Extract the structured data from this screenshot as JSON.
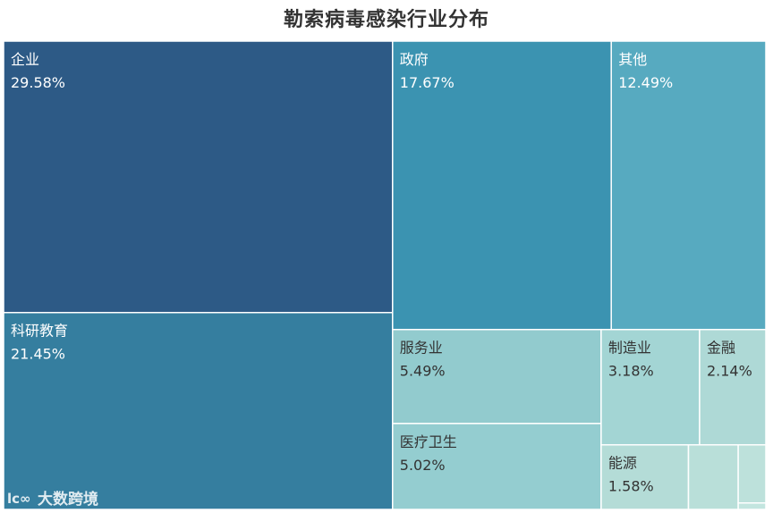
{
  "chart_data": {
    "type": "treemap",
    "title": "勒索病毒感染行业分布",
    "items": [
      {
        "name": "企业",
        "value": 29.58,
        "label": "29.58%",
        "color": "#2d5a86"
      },
      {
        "name": "科研教育",
        "value": 21.45,
        "label": "21.45%",
        "color": "#357e9f"
      },
      {
        "name": "政府",
        "value": 17.67,
        "label": "17.67%",
        "color": "#3b93b1"
      },
      {
        "name": "其他",
        "value": 12.49,
        "label": "12.49%",
        "color": "#57aac0"
      },
      {
        "name": "服务业",
        "value": 5.49,
        "label": "5.49%",
        "color": "#92cbce"
      },
      {
        "name": "医疗卫生",
        "value": 5.02,
        "label": "5.02%",
        "color": "#94cdd0"
      },
      {
        "name": "制造业",
        "value": 3.18,
        "label": "3.18%",
        "color": "#a3d5d4"
      },
      {
        "name": "金融",
        "value": 2.14,
        "label": "2.14%",
        "color": "#aed9d6"
      },
      {
        "name": "能源",
        "value": 1.58,
        "label": "1.58%",
        "color": "#b4dcd7"
      },
      {
        "name": "",
        "value": 0.9,
        "label": "",
        "color": "#b9dfd9"
      },
      {
        "name": "",
        "value": 0.45,
        "label": "",
        "color": "#bde1db"
      },
      {
        "name": "",
        "value": 0.05,
        "label": "",
        "color": "#c3e5df"
      }
    ]
  },
  "watermark": {
    "text": "大数跨境"
  }
}
